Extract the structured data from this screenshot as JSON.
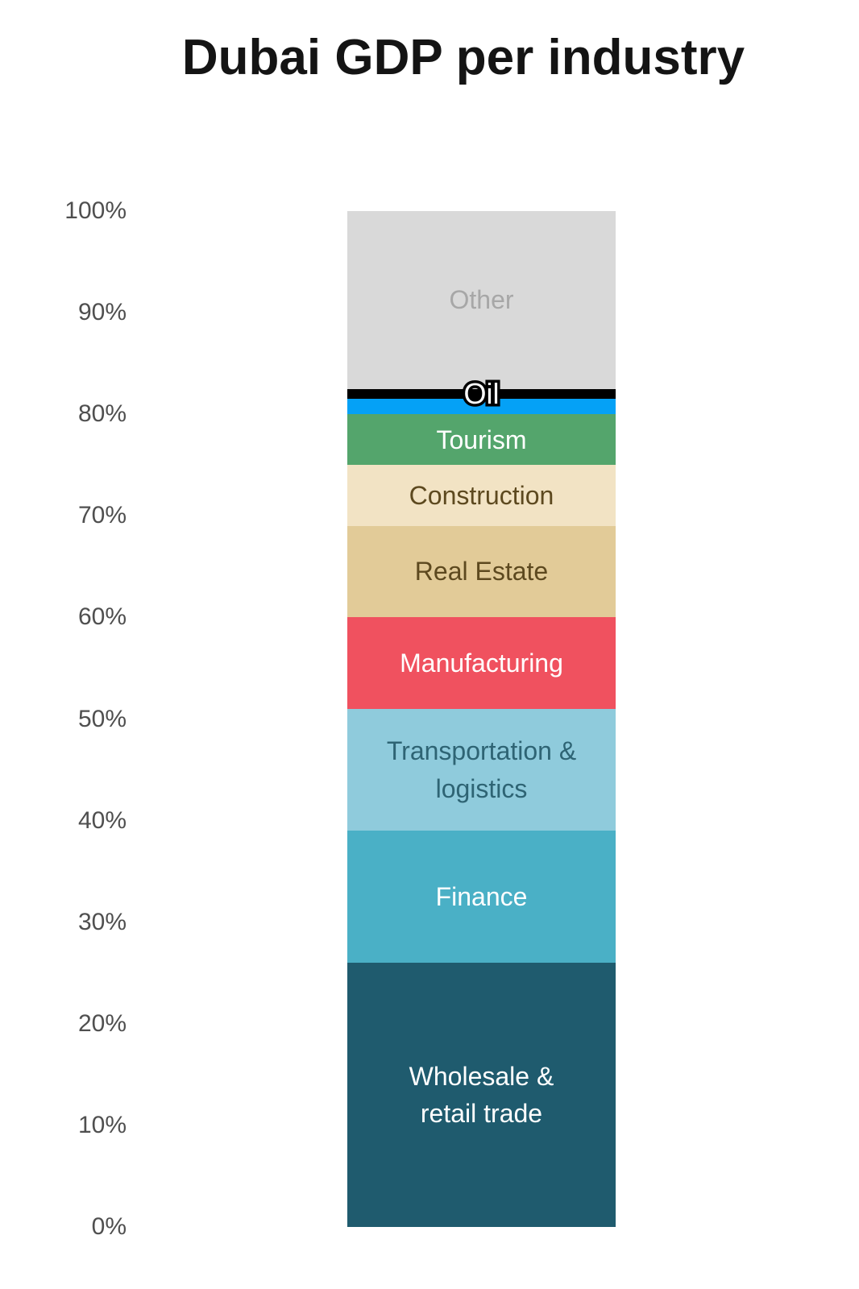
{
  "page": {
    "background": "#ffffff"
  },
  "title": {
    "text": "Dubai GDP per industry",
    "color": "#141414"
  },
  "axis": {
    "ticks": [
      "100%",
      "90%",
      "80%",
      "70%",
      "60%",
      "50%",
      "40%",
      "30%",
      "20%",
      "10%",
      "0%"
    ],
    "tick_color": "#4f4f4f"
  },
  "chart_data": {
    "type": "bar",
    "subtype": "single-column-percentage-stack",
    "title": "Dubai GDP per industry",
    "xlabel": "",
    "ylabel": "",
    "ylim": [
      0,
      100
    ],
    "yticks_percent": [
      100,
      90,
      80,
      70,
      60,
      50,
      40,
      30,
      20,
      10,
      0
    ],
    "grid": false,
    "legend": false,
    "segments_top_to_bottom": [
      {
        "id": "other",
        "label": "Other",
        "value": 17.5,
        "color": "#d9d9d9",
        "label_color": "#a7a7a7"
      },
      {
        "id": "oil",
        "label": "Oil",
        "value": 1.0,
        "color": "#000000",
        "label_color": "#ffffff",
        "label_style": "outline"
      },
      {
        "id": "blue-band",
        "label": "",
        "value": 1.5,
        "color": "#05a1f6",
        "label_color": ""
      },
      {
        "id": "tourism",
        "label": "Tourism",
        "value": 5.0,
        "color": "#54a56c",
        "label_color": "#ffffff"
      },
      {
        "id": "construction",
        "label": "Construction",
        "value": 6.0,
        "color": "#f2e3c4",
        "label_color": "#5d491f"
      },
      {
        "id": "real-estate",
        "label": "Real Estate",
        "value": 9.0,
        "color": "#e2cb98",
        "label_color": "#5d491f"
      },
      {
        "id": "manufacturing",
        "label": "Manufacturing",
        "value": 9.0,
        "color": "#f0515f",
        "label_color": "#ffffff"
      },
      {
        "id": "transportation-logistics",
        "label": "Transportation &\nlogistics",
        "value": 12.0,
        "color": "#8fcbdc",
        "label_color": "#2e6474"
      },
      {
        "id": "finance",
        "label": "Finance",
        "value": 13.0,
        "color": "#4ab0c6",
        "label_color": "#ffffff"
      },
      {
        "id": "wholesale-retail-trade",
        "label": "Wholesale &\nretail trade",
        "value": 26.0,
        "color": "#1f5b6e",
        "label_color": "#ffffff"
      }
    ]
  }
}
